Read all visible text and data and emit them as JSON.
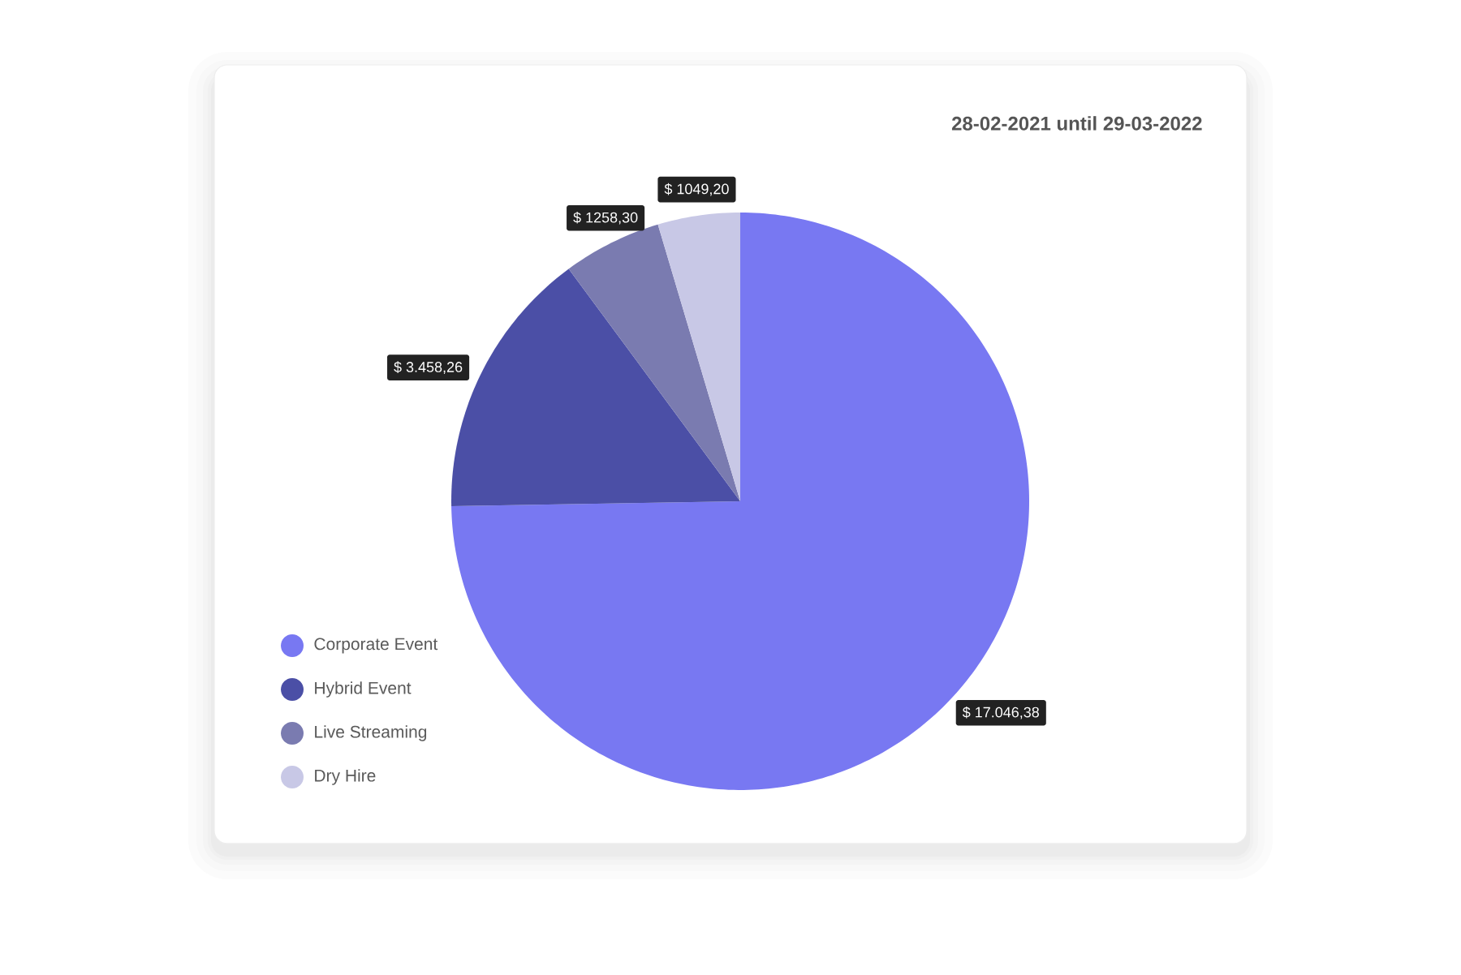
{
  "chart_data": {
    "type": "pie",
    "title": "28-02-2021 until 29-03-2022",
    "categories": [
      "Corporate Event",
      "Hybrid Event",
      "Live Streaming",
      "Dry Hire"
    ],
    "values": [
      17046.38,
      3458.26,
      1258.3,
      1049.2
    ],
    "colors": [
      "#7878f2",
      "#4b4fa6",
      "#7a7bb0",
      "#c8c8e6"
    ],
    "value_labels": [
      "$ 17.046,38",
      "$ 3.458,26",
      "$ 1258,30",
      "$ 1049,20"
    ],
    "legend": "bottom left"
  }
}
